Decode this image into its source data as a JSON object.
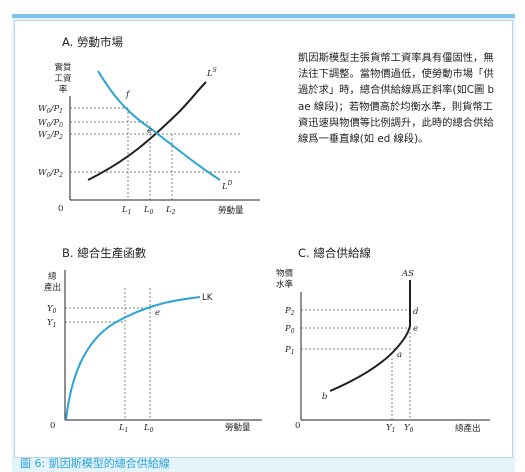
{
  "description": "凱因斯模型主張貨幣工資率具有僵固性，無法往下調整。當物價過低，使勞動市場「供過於求」時，總合供給線爲正斜率(如C圖 bae 線段)；若物價高於均衡水準，則貨幣工資迅速與物價等比例調升，此時的總合供給線爲一垂直線(如 ed 線段)。",
  "caption": "圖 6: 凱因斯模型的總合供給線",
  "panels": {
    "a": {
      "title": "A. 勞動市場",
      "y_axis_label": [
        "實質",
        "工資",
        "率"
      ],
      "x_axis_label": "勞動量",
      "origin": "0",
      "y_ticks": [
        "W0/P1",
        "W0/P0",
        "W2/P2",
        "W0/P2"
      ],
      "x_ticks": [
        "L1",
        "L0",
        "L2"
      ],
      "curve_labels": {
        "supply": "LS",
        "demand": "LD"
      },
      "points": [
        "f",
        "e"
      ]
    },
    "b": {
      "title": "B. 總合生產函數",
      "y_axis_label": [
        "總",
        "產出"
      ],
      "x_axis_label": "勞動量",
      "origin": "0",
      "y_ticks": [
        "Y0",
        "Y1"
      ],
      "x_ticks": [
        "L1",
        "L0"
      ],
      "curve_label": "LK",
      "points": [
        "e"
      ]
    },
    "c": {
      "title": "C. 總合供給線",
      "y_axis_label": [
        "物價",
        "水準"
      ],
      "x_axis_label": "總產出",
      "origin": "0",
      "y_ticks": [
        "P2",
        "P0",
        "P1"
      ],
      "x_ticks": [
        "Y1",
        "Y0"
      ],
      "curve_label": "AS",
      "points": [
        "d",
        "e",
        "a",
        "b"
      ]
    }
  },
  "colors": {
    "frame": "#e4f4fb",
    "frame_border": "#7fc3e6",
    "caption": "#2ea3d8",
    "supply_curve": "#231f20",
    "demand_curve": "#2aa3d8",
    "dashed": "#555555"
  }
}
